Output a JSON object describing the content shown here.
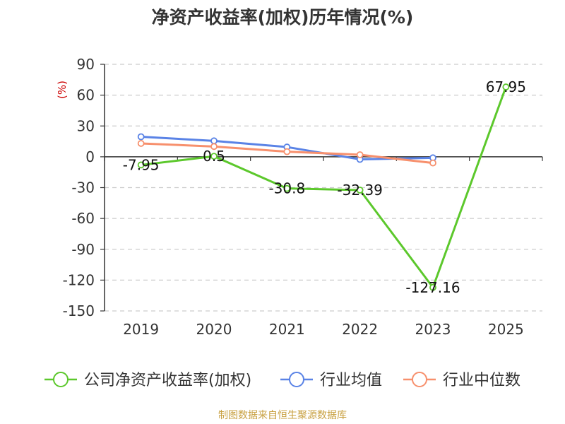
{
  "chart_data": {
    "type": "line",
    "title": "净资产收益率(加权)历年情况(%)",
    "ylabel": "(%)",
    "xlabel": "",
    "categories": [
      "2019",
      "2020",
      "2021",
      "2022",
      "2023",
      "2025"
    ],
    "ylim": [
      -150,
      90
    ],
    "yticks": [
      90,
      60,
      30,
      0,
      -30,
      -60,
      -90,
      -120,
      -150
    ],
    "grid": true,
    "legend_position": "bottom",
    "series": [
      {
        "name": "公司净资产收益率(加权)",
        "color": "#5cc82c",
        "values": [
          -7.95,
          0.5,
          -30.8,
          -32.39,
          -127.16,
          67.95
        ],
        "labels": [
          "-7.95",
          "0.5",
          "-30.8",
          "-32.39",
          "-127.16",
          "67.95"
        ]
      },
      {
        "name": "行业均值",
        "color": "#5a83e6",
        "values": [
          19.5,
          15.5,
          9.5,
          -2.5,
          -1.0,
          null
        ]
      },
      {
        "name": "行业中位数",
        "color": "#f7906d",
        "values": [
          13.0,
          10.0,
          5.0,
          2.0,
          -6.0,
          null
        ]
      }
    ],
    "source": "制图数据来自恒生聚源数据库",
    "colors": {
      "title": "#333333",
      "axis_label": "#cc0000",
      "tick_text": "#333333",
      "grid": "#cccccc",
      "source": "#c8a040"
    }
  }
}
